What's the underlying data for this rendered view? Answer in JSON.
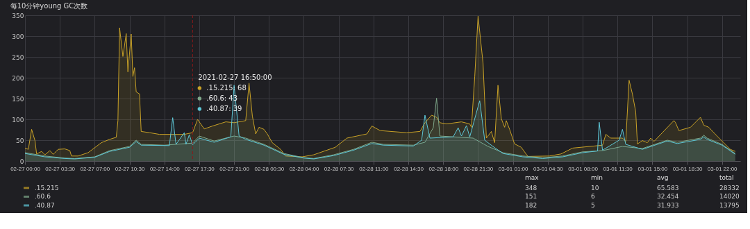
{
  "chart_data": {
    "type": "area",
    "title": "每10分钟young GC次数",
    "xlim": [
      "2021-02-27T00:00",
      "2021-03-01T23:50"
    ],
    "xticks": [
      {
        "value": "2021-02-27T00:00",
        "label": "02-27 00:00"
      },
      {
        "value": "2021-02-27T03:30",
        "label": "02-27 03:30"
      },
      {
        "value": "2021-02-27T07:00",
        "label": "02-27 07:00"
      },
      {
        "value": "2021-02-27T10:30",
        "label": "02-27 10:30"
      },
      {
        "value": "2021-02-27T14:00",
        "label": "02-27 14:00"
      },
      {
        "value": "2021-02-27T17:30",
        "label": "02-27 17:30"
      },
      {
        "value": "2021-02-27T21:00",
        "label": "02-27 21:00"
      },
      {
        "value": "2021-02-28T00:30",
        "label": "02-28 00:30"
      },
      {
        "value": "2021-02-28T04:00",
        "label": "02-28 04:00"
      },
      {
        "value": "2021-02-28T07:30",
        "label": "02-28 07:30"
      },
      {
        "value": "2021-02-28T11:00",
        "label": "02-28 11:00"
      },
      {
        "value": "2021-02-28T14:30",
        "label": "02-28 14:30"
      },
      {
        "value": "2021-02-28T18:00",
        "label": "02-28 18:00"
      },
      {
        "value": "2021-02-28T21:30",
        "label": "02-28 21:30"
      },
      {
        "value": "2021-03-01T01:00",
        "label": "03-01 01:00"
      },
      {
        "value": "2021-03-01T04:30",
        "label": "03-01 04:30"
      },
      {
        "value": "2021-03-01T08:00",
        "label": "03-01 08:00"
      },
      {
        "value": "2021-03-01T11:30",
        "label": "03-01 11:30"
      },
      {
        "value": "2021-03-01T15:00",
        "label": "03-01 15:00"
      },
      {
        "value": "2021-03-01T18:30",
        "label": "03-01 18:30"
      },
      {
        "value": "2021-03-01T22:00",
        "label": "03-01 22:00"
      }
    ],
    "ylim": [
      0,
      350
    ],
    "yticks": [
      0,
      50,
      100,
      150,
      200,
      250,
      300,
      350
    ],
    "grid": true,
    "legend": "bottom",
    "ref_lines": [
      {
        "axis": "x",
        "value": "2021-02-27T16:50",
        "label": null,
        "color": "#8b1a1a",
        "line_style": "dashed"
      }
    ],
    "annotations": [
      "2021-02-27 16:50:00",
      ".15.215: 68",
      ".60.6: 43",
      ".40.87: 39",
      "max",
      "min",
      "avg",
      "total",
      "348",
      "10",
      "65.583",
      "28332",
      "151",
      "6",
      "32.454",
      "14020",
      "182",
      "5",
      "31.933",
      "13795"
    ],
    "series": [
      {
        "name": ".15.215",
        "color": "#c9a227",
        "x": [
          "2021-02-27T00:00",
          "2021-02-27T00:20",
          "2021-02-27T00:40",
          "2021-02-27T01:00",
          "2021-02-27T01:10",
          "2021-02-27T01:40",
          "2021-02-27T02:00",
          "2021-02-27T02:30",
          "2021-02-27T02:50",
          "2021-02-27T03:20",
          "2021-02-27T04:00",
          "2021-02-27T04:30",
          "2021-02-27T04:40",
          "2021-02-27T05:20",
          "2021-02-27T06:20",
          "2021-02-27T07:40",
          "2021-02-27T08:30",
          "2021-02-27T09:10",
          "2021-02-27T09:20",
          "2021-02-27T09:30",
          "2021-02-27T09:50",
          "2021-02-27T10:10",
          "2021-02-27T10:20",
          "2021-02-27T10:40",
          "2021-02-27T10:50",
          "2021-02-27T11:00",
          "2021-02-27T11:10",
          "2021-02-27T11:30",
          "2021-02-27T11:40",
          "2021-02-27T12:30",
          "2021-02-27T13:30",
          "2021-02-27T16:00",
          "2021-02-27T16:50",
          "2021-02-27T17:20",
          "2021-02-27T18:00",
          "2021-02-27T18:50",
          "2021-02-27T20:10",
          "2021-02-27T21:00",
          "2021-02-27T22:10",
          "2021-02-27T22:30",
          "2021-02-27T22:50",
          "2021-02-27T23:10",
          "2021-02-27T23:30",
          "2021-02-28T00:00",
          "2021-02-28T00:20",
          "2021-02-28T00:50",
          "2021-02-28T01:40",
          "2021-02-28T02:10",
          "2021-02-28T03:50",
          "2021-02-28T05:00",
          "2021-02-28T07:10",
          "2021-02-28T08:20",
          "2021-02-28T10:20",
          "2021-02-28T10:50",
          "2021-02-28T11:40",
          "2021-02-28T14:20",
          "2021-02-28T15:40",
          "2021-02-28T16:10",
          "2021-02-28T16:50",
          "2021-02-28T17:20",
          "2021-02-28T17:40",
          "2021-02-28T18:20",
          "2021-02-28T19:50",
          "2021-02-28T20:40",
          "2021-02-28T20:50",
          "2021-02-28T21:10",
          "2021-02-28T21:30",
          "2021-02-28T22:00",
          "2021-02-28T22:20",
          "2021-02-28T22:50",
          "2021-02-28T23:10",
          "2021-02-28T23:30",
          "2021-02-28T23:50",
          "2021-03-01T00:10",
          "2021-03-01T00:20",
          "2021-03-01T00:40",
          "2021-03-01T01:10",
          "2021-03-01T01:50",
          "2021-03-01T02:30",
          "2021-03-01T04:40",
          "2021-03-01T05:50",
          "2021-03-01T07:00",
          "2021-03-01T09:10",
          "2021-03-01T10:00",
          "2021-03-01T10:20",
          "2021-03-01T10:50",
          "2021-03-01T12:00",
          "2021-03-01T12:20",
          "2021-03-01T12:40",
          "2021-03-01T13:00",
          "2021-03-01T13:20",
          "2021-03-01T13:30",
          "2021-03-01T14:00",
          "2021-03-01T14:30",
          "2021-03-01T14:50",
          "2021-03-01T15:10",
          "2021-03-01T17:10",
          "2021-03-01T17:20",
          "2021-03-01T17:40",
          "2021-03-01T18:50",
          "2021-03-01T19:50",
          "2021-03-01T20:10",
          "2021-03-01T20:40",
          "2021-03-01T21:30",
          "2021-03-01T22:50",
          "2021-03-01T23:20"
        ],
        "values": [
          31,
          28,
          76,
          49,
          17,
          23,
          15,
          25,
          16,
          28,
          29,
          25,
          12,
          12,
          20,
          44,
          52,
          57,
          97,
          320,
          251,
          306,
          214,
          305,
          203,
          224,
          166,
          161,
          71,
          68,
          64,
          64,
          68,
          100,
          77,
          84,
          94,
          92,
          97,
          187,
          108,
          65,
          81,
          76,
          65,
          44,
          28,
          12,
          10,
          15,
          33,
          55,
          65,
          84,
          73,
          68,
          71,
          92,
          110,
          105,
          92,
          89,
          94,
          89,
          81,
          203,
          348,
          235,
          55,
          71,
          44,
          182,
          102,
          81,
          97,
          76,
          41,
          33,
          11,
          12,
          17,
          31,
          36,
          38,
          64,
          55,
          55,
          47,
          194,
          161,
          118,
          41,
          49,
          44,
          55,
          47,
          97,
          92,
          73,
          81,
          105,
          86,
          81,
          60,
          28,
          23
        ]
      },
      {
        "name": ".60.6",
        "color": "#7fa88a",
        "x": [
          "2021-02-27T00:00",
          "2021-02-27T02:00",
          "2021-02-27T04:00",
          "2021-02-27T05:00",
          "2021-02-27T07:00",
          "2021-02-27T08:30",
          "2021-02-27T10:30",
          "2021-02-27T11:10",
          "2021-02-27T11:40",
          "2021-02-27T14:00",
          "2021-02-27T16:50",
          "2021-02-27T17:30",
          "2021-02-27T19:00",
          "2021-02-27T21:00",
          "2021-02-27T22:10",
          "2021-02-28T00:00",
          "2021-02-28T02:00",
          "2021-02-28T04:00",
          "2021-02-28T05:00",
          "2021-02-28T07:00",
          "2021-02-28T09:00",
          "2021-02-28T10:50",
          "2021-02-28T12:00",
          "2021-02-28T15:00",
          "2021-02-28T16:10",
          "2021-02-28T17:00",
          "2021-02-28T17:20",
          "2021-02-28T17:40",
          "2021-02-28T19:00",
          "2021-02-28T21:00",
          "2021-02-28T22:30",
          "2021-03-01T00:00",
          "2021-03-01T02:00",
          "2021-03-01T04:00",
          "2021-03-01T06:00",
          "2021-03-01T08:00",
          "2021-03-01T10:00",
          "2021-03-01T12:00",
          "2021-03-01T14:00",
          "2021-03-01T16:30",
          "2021-03-01T17:30",
          "2021-03-01T19:50",
          "2021-03-01T20:10",
          "2021-03-01T20:30",
          "2021-03-01T22:00",
          "2021-03-01T23:20"
        ],
        "values": [
          20,
          12,
          7,
          6,
          10,
          25,
          35,
          50,
          40,
          38,
          43,
          60,
          48,
          60,
          55,
          40,
          18,
          8,
          6,
          15,
          28,
          45,
          40,
          38,
          45,
          80,
          151,
          60,
          58,
          55,
          35,
          20,
          12,
          8,
          12,
          22,
          25,
          35,
          30,
          50,
          45,
          55,
          62,
          55,
          40,
          18
        ]
      },
      {
        "name": ".40.87",
        "color": "#5ec8d8",
        "x": [
          "2021-02-27T00:00",
          "2021-02-27T02:00",
          "2021-02-27T04:00",
          "2021-02-27T05:00",
          "2021-02-27T07:00",
          "2021-02-27T08:30",
          "2021-02-27T10:30",
          "2021-02-27T11:10",
          "2021-02-27T11:40",
          "2021-02-27T14:30",
          "2021-02-27T14:50",
          "2021-02-27T15:10",
          "2021-02-27T16:00",
          "2021-02-27T16:10",
          "2021-02-27T16:30",
          "2021-02-27T16:50",
          "2021-02-27T17:30",
          "2021-02-27T19:00",
          "2021-02-27T20:40",
          "2021-02-27T21:00",
          "2021-02-27T21:30",
          "2021-02-27T22:10",
          "2021-02-28T00:00",
          "2021-02-28T02:00",
          "2021-02-28T04:00",
          "2021-02-28T05:00",
          "2021-02-28T07:00",
          "2021-02-28T09:00",
          "2021-02-28T10:50",
          "2021-02-28T12:00",
          "2021-02-28T15:00",
          "2021-02-28T15:50",
          "2021-02-28T16:10",
          "2021-02-28T16:40",
          "2021-02-28T19:00",
          "2021-02-28T19:30",
          "2021-02-28T19:50",
          "2021-02-28T20:20",
          "2021-02-28T20:40",
          "2021-02-28T21:40",
          "2021-02-28T22:10",
          "2021-02-28T23:00",
          "2021-03-01T00:00",
          "2021-03-01T02:00",
          "2021-03-01T04:00",
          "2021-03-01T06:00",
          "2021-03-01T08:00",
          "2021-03-01T09:30",
          "2021-03-01T09:40",
          "2021-03-01T10:00",
          "2021-03-01T11:40",
          "2021-03-01T12:00",
          "2021-03-01T12:20",
          "2021-03-01T14:00",
          "2021-03-01T16:30",
          "2021-03-01T17:30",
          "2021-03-01T19:50",
          "2021-03-01T20:10",
          "2021-03-01T20:30",
          "2021-03-01T22:00",
          "2021-03-01T23:20"
        ],
        "values": [
          18,
          10,
          6,
          5,
          9,
          23,
          33,
          47,
          38,
          37,
          104,
          40,
          68,
          40,
          63,
          39,
          55,
          45,
          58,
          182,
          60,
          52,
          38,
          16,
          7,
          5,
          13,
          26,
          42,
          38,
          36,
          50,
          110,
          55,
          58,
          80,
          60,
          85,
          58,
          145,
          50,
          35,
          18,
          10,
          6,
          10,
          20,
          24,
          93,
          26,
          50,
          76,
          40,
          28,
          48,
          42,
          52,
          58,
          52,
          38,
          16
        ]
      }
    ]
  }
}
